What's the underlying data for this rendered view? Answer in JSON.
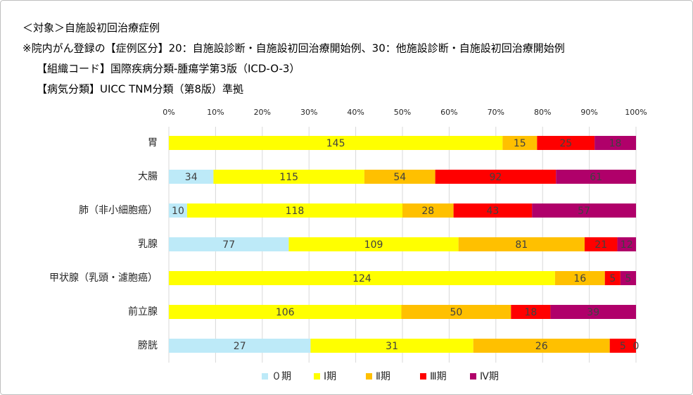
{
  "header": {
    "lines": [
      "＜対象＞自施設初回治療症例",
      "※院内がん登録の【症例区分】20：自施設診断・自施設初回治療開始例、30：他施設診断・自施設初回治療開始例",
      "【組織コード】国際疾病分類-腫瘍学第3版（ICD-O-3）",
      "【病気分類】UICC TNM分類（第8版）準拠"
    ]
  },
  "chart_data": {
    "type": "bar",
    "orientation": "horizontal",
    "stack": "percent",
    "categories": [
      "胃",
      "大腸",
      "肺（非小細胞癌）",
      "乳腺",
      "甲状腺（乳頭・濾胞癌）",
      "前立腺",
      "膀胱"
    ],
    "series": [
      {
        "name": "０期",
        "color": "#bdeaf8",
        "values": [
          null,
          34,
          10,
          77,
          null,
          null,
          27
        ]
      },
      {
        "name": "Ⅰ期",
        "color": "#ffff00",
        "values": [
          145,
          115,
          118,
          109,
          124,
          106,
          31
        ]
      },
      {
        "name": "Ⅱ期",
        "color": "#ffc000",
        "values": [
          15,
          54,
          28,
          81,
          16,
          50,
          26
        ]
      },
      {
        "name": "Ⅲ期",
        "color": "#ff0000",
        "values": [
          25,
          92,
          43,
          21,
          5,
          18,
          5
        ]
      },
      {
        "name": "Ⅳ期",
        "color": "#b0006a",
        "values": [
          18,
          61,
          57,
          12,
          5,
          39,
          0
        ]
      }
    ],
    "xlim": [
      0,
      100
    ],
    "xticks": [
      {
        "value": 0,
        "label": "0%"
      },
      {
        "value": 10,
        "label": "10%"
      },
      {
        "value": 20,
        "label": "20%"
      },
      {
        "value": 30,
        "label": "30%"
      },
      {
        "value": 40,
        "label": "40%"
      },
      {
        "value": 50,
        "label": "50%"
      },
      {
        "value": 60,
        "label": "60%"
      },
      {
        "value": 70,
        "label": "70%"
      },
      {
        "value": 80,
        "label": "80%"
      },
      {
        "value": 90,
        "label": "90%"
      },
      {
        "value": 100,
        "label": "100%"
      }
    ],
    "grid": true,
    "legend": "bottom"
  }
}
